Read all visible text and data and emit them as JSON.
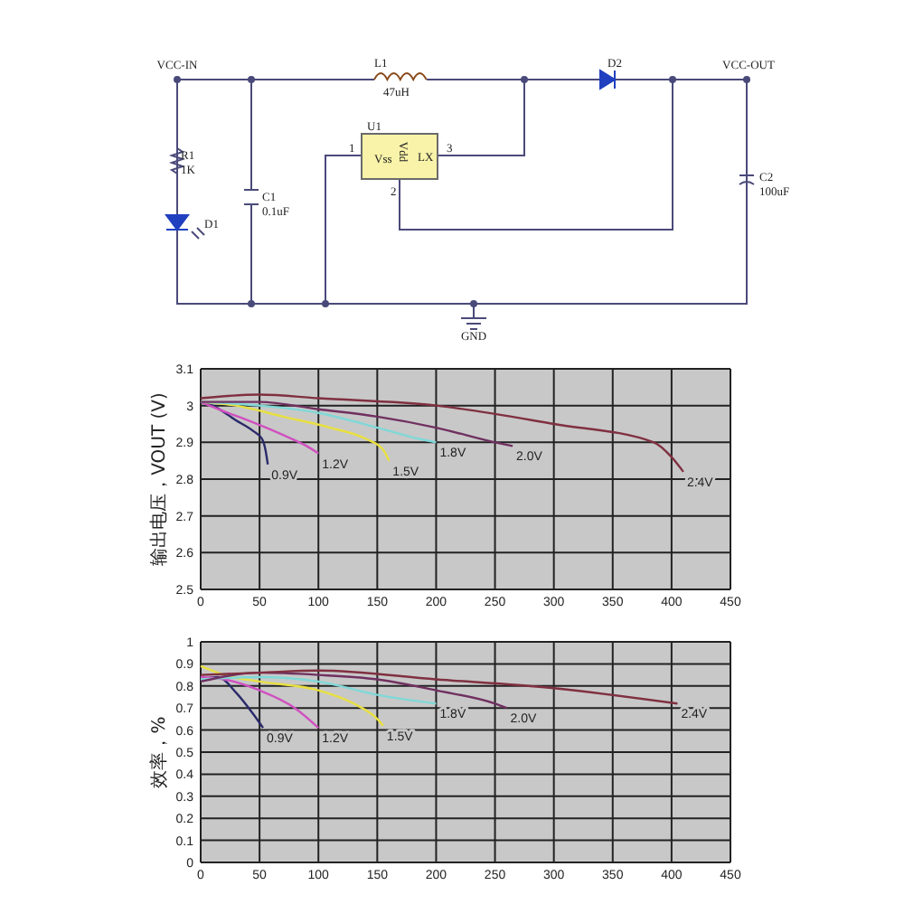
{
  "chart_data": [
    {
      "type": "other",
      "annotations": [
        "VCC-IN",
        "L1",
        "47uH",
        "D2",
        "VCC-OUT",
        "U1",
        "Vss",
        "LX",
        "Vdd",
        "1",
        "3",
        "2",
        "R1",
        "1K",
        "C1",
        "0.1uF",
        "D1",
        "C2",
        "100uF",
        "GND"
      ]
    },
    {
      "type": "line",
      "ylabel": "输出电压，VOUT (V)",
      "xlim": [
        0,
        450
      ],
      "xticks": [
        0,
        50,
        100,
        150,
        200,
        250,
        300,
        350,
        400,
        450
      ],
      "ylim": [
        2.5,
        3.1
      ],
      "yticks": [
        2.5,
        2.6,
        2.7,
        2.8,
        2.9,
        3.0,
        3.1
      ],
      "grid": true,
      "series": [
        {
          "name": "0.9V",
          "color": "#2a2a6a",
          "x": [
            0,
            10,
            30,
            45,
            52,
            55,
            57
          ],
          "values": [
            3.01,
            3.0,
            2.96,
            2.93,
            2.91,
            2.88,
            2.84
          ]
        },
        {
          "name": "1.2V",
          "color": "#d050c0",
          "x": [
            0,
            15,
            40,
            70,
            90,
            100
          ],
          "values": [
            3.01,
            2.99,
            2.96,
            2.92,
            2.89,
            2.87
          ]
        },
        {
          "name": "1.5V",
          "color": "#e8e040",
          "x": [
            0,
            30,
            70,
            110,
            140,
            155,
            160
          ],
          "values": [
            3.01,
            3.0,
            2.97,
            2.94,
            2.91,
            2.88,
            2.85
          ]
        },
        {
          "name": "1.8V",
          "color": "#80d8d8",
          "x": [
            0,
            50,
            100,
            150,
            185,
            200
          ],
          "values": [
            3.01,
            3.0,
            2.98,
            2.94,
            2.91,
            2.9
          ]
        },
        {
          "name": "2.0V",
          "color": "#703060",
          "x": [
            0,
            50,
            100,
            150,
            200,
            250,
            265
          ],
          "values": [
            3.01,
            3.01,
            2.99,
            2.97,
            2.94,
            2.9,
            2.89
          ]
        },
        {
          "name": "2.4V",
          "color": "#803040",
          "x": [
            0,
            50,
            100,
            200,
            300,
            385,
            400,
            410
          ],
          "values": [
            3.02,
            3.03,
            3.02,
            3.0,
            2.95,
            2.9,
            2.86,
            2.82
          ]
        }
      ]
    },
    {
      "type": "line",
      "ylabel": "效率，%",
      "xlim": [
        0,
        450
      ],
      "xticks": [
        0,
        50,
        100,
        150,
        200,
        250,
        300,
        350,
        400,
        450
      ],
      "ylim": [
        0,
        1
      ],
      "yticks": [
        0,
        0.1,
        0.2,
        0.3,
        0.4,
        0.5,
        0.6,
        0.7,
        0.8,
        0.9,
        1
      ],
      "grid": true,
      "series": [
        {
          "name": "0.9V",
          "color": "#2a2a6a",
          "x": [
            0,
            15,
            30,
            45,
            53
          ],
          "values": [
            0.83,
            0.84,
            0.77,
            0.67,
            0.61
          ]
        },
        {
          "name": "1.2V",
          "color": "#d050c0",
          "x": [
            0,
            20,
            50,
            80,
            100
          ],
          "values": [
            0.84,
            0.83,
            0.78,
            0.7,
            0.61
          ]
        },
        {
          "name": "1.5V",
          "color": "#e8e040",
          "x": [
            0,
            20,
            50,
            100,
            130,
            150,
            155
          ],
          "values": [
            0.89,
            0.85,
            0.82,
            0.78,
            0.72,
            0.65,
            0.62
          ]
        },
        {
          "name": "1.8V",
          "color": "#80d8d8",
          "x": [
            0,
            50,
            100,
            150,
            200
          ],
          "values": [
            0.83,
            0.84,
            0.82,
            0.76,
            0.72
          ]
        },
        {
          "name": "2.0V",
          "color": "#703060",
          "x": [
            0,
            50,
            100,
            150,
            200,
            250,
            260
          ],
          "values": [
            0.82,
            0.86,
            0.85,
            0.83,
            0.78,
            0.72,
            0.7
          ]
        },
        {
          "name": "2.4V",
          "color": "#803040",
          "x": [
            0,
            50,
            100,
            200,
            300,
            405
          ],
          "values": [
            0.85,
            0.86,
            0.87,
            0.83,
            0.79,
            0.72
          ]
        }
      ]
    }
  ]
}
